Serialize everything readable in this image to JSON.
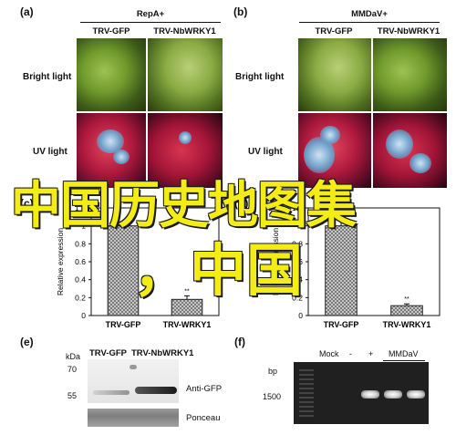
{
  "panels": {
    "a": {
      "label": "(a)",
      "title": "RepA+",
      "col1": "TRV-GFP",
      "col2": "TRV-NbWRKY1",
      "row1": "Bright light",
      "row2": "UV light"
    },
    "b": {
      "label": "(b)",
      "title": "MMDaV+",
      "col1": "TRV-GFP",
      "col2": "TRV-NbWRKY1",
      "row1": "Bright light",
      "row2": "UV light"
    },
    "c": {
      "label": "(c)",
      "ylabel": "Relative expression",
      "sig": "**"
    },
    "d": {
      "label": "(d)",
      "ylabel": "Relative expression",
      "sig": "**"
    },
    "e": {
      "label": "(e)",
      "kda": "kDa",
      "lane1": "TRV-GFP",
      "lane2": "TRV-NbWRKY1",
      "m70": "70",
      "m55": "55",
      "anti": "Anti-GFP",
      "ponceau": "Ponceau"
    },
    "f": {
      "label": "(f)",
      "bp": "bp",
      "mark": "1500",
      "mock": "Mock",
      "minus": "-",
      "plus": "+",
      "mmdav": "MMDaV"
    }
  },
  "watermark": {
    "line1": "中国历史地图集",
    "line2": "，中国"
  },
  "chart_data": [
    {
      "type": "bar",
      "panel": "c",
      "categories": [
        "TRV-GFP",
        "TRV-WRKY1"
      ],
      "values": [
        1.0,
        0.18
      ],
      "errors": [
        0.03,
        0.04
      ],
      "ylabel": "Relative expression",
      "ylim": [
        0,
        1.2
      ],
      "yticks": [
        "0",
        "0.2",
        "0.4",
        "0.6",
        "0.8",
        "1",
        "1.2"
      ]
    },
    {
      "type": "bar",
      "panel": "d",
      "categories": [
        "TRV-GFP",
        "TRV-WRKY1"
      ],
      "values": [
        1.0,
        0.11
      ],
      "errors": [
        0.08,
        0.02
      ],
      "ylabel": "Relative expression",
      "ylim": [
        0,
        1.2
      ],
      "yticks": [
        "0",
        "0.2",
        "0.4",
        "0.6",
        "0.8",
        "1",
        "1.2"
      ]
    }
  ]
}
